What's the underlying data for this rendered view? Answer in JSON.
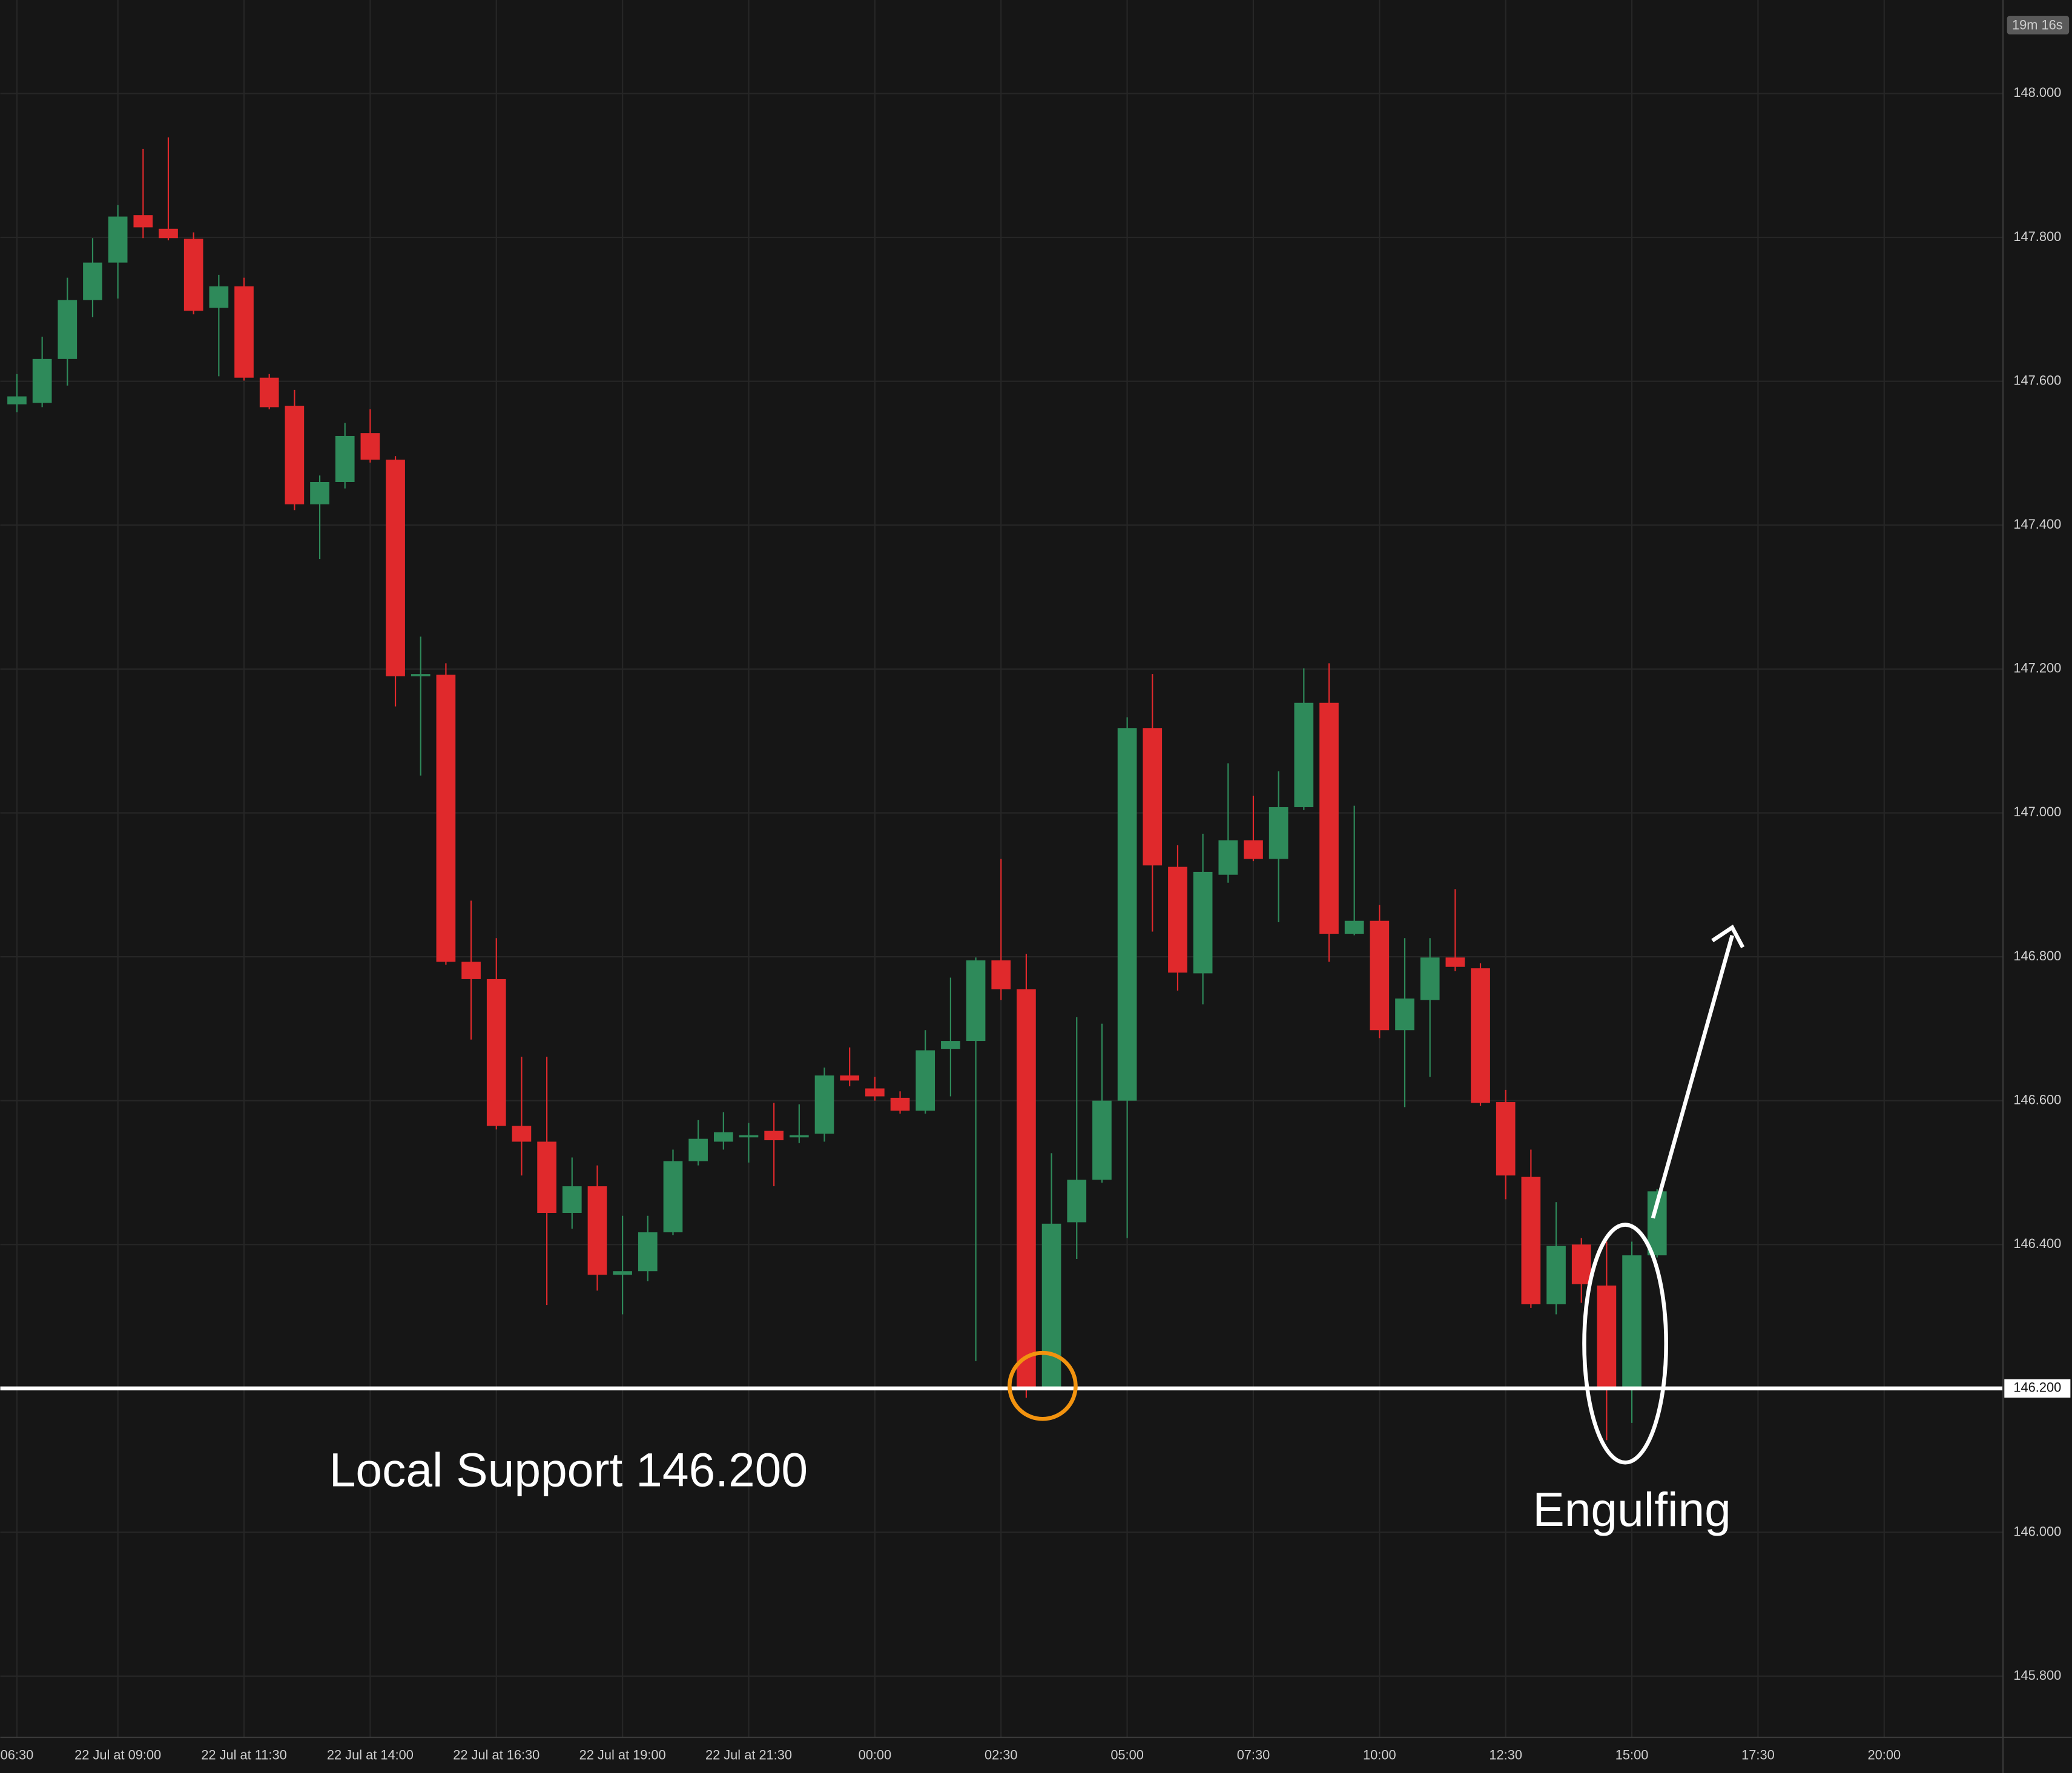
{
  "chart_data": {
    "type": "candlestick",
    "x": [
      -4,
      -3,
      -2,
      -1,
      0,
      1,
      2,
      3,
      4,
      5,
      6,
      7,
      8,
      9,
      10,
      11,
      12,
      13,
      14,
      15,
      16,
      17,
      18,
      19,
      20,
      21,
      22,
      23,
      24,
      25,
      26,
      27,
      28,
      29,
      30,
      31,
      32,
      33,
      34,
      35,
      36,
      37,
      38,
      39,
      40,
      41,
      42,
      43,
      44,
      45,
      46,
      47,
      48,
      49,
      50,
      51,
      52,
      53,
      54,
      55,
      56,
      57,
      58,
      59,
      60,
      61
    ],
    "open": [
      147.568,
      147.57,
      147.631,
      147.713,
      147.765,
      147.831,
      147.812,
      147.798,
      147.702,
      147.732,
      147.605,
      147.566,
      147.429,
      147.46,
      147.528,
      147.491,
      147.19,
      147.192,
      146.793,
      146.769,
      146.565,
      146.543,
      146.444,
      146.481,
      146.358,
      146.363,
      146.417,
      146.516,
      146.543,
      146.549,
      146.558,
      146.549,
      146.554,
      146.635,
      146.617,
      146.604,
      146.586,
      146.672,
      146.683,
      146.795,
      146.755,
      146.202,
      146.431,
      146.49,
      146.6,
      147.118,
      146.925,
      146.777,
      146.914,
      146.962,
      146.936,
      147.008,
      147.153,
      146.832,
      146.85,
      146.698,
      146.74,
      146.799,
      146.784,
      146.598,
      146.494,
      146.317,
      146.4,
      146.343,
      146.202,
      146.385
    ],
    "high": [
      147.61,
      147.662,
      147.744,
      147.799,
      147.845,
      147.923,
      147.939,
      147.807,
      147.748,
      147.744,
      147.61,
      147.588,
      147.469,
      147.542,
      147.561,
      147.496,
      147.245,
      147.208,
      146.878,
      146.826,
      146.661,
      146.661,
      146.521,
      146.51,
      146.44,
      146.44,
      146.532,
      146.573,
      146.584,
      146.569,
      146.597,
      146.595,
      146.646,
      146.674,
      146.633,
      146.613,
      146.698,
      146.771,
      146.799,
      146.936,
      146.804,
      146.527,
      146.716,
      146.707,
      147.133,
      147.193,
      146.955,
      146.971,
      147.069,
      147.024,
      147.058,
      147.201,
      147.208,
      147.01,
      146.872,
      146.826,
      146.826,
      146.894,
      146.791,
      146.615,
      146.532,
      146.459,
      146.409,
      146.404,
      146.404,
      146.477
    ],
    "low": [
      147.557,
      147.564,
      147.594,
      147.689,
      147.715,
      147.799,
      147.796,
      147.693,
      147.607,
      147.601,
      147.561,
      147.421,
      147.353,
      147.451,
      147.487,
      147.148,
      147.052,
      146.789,
      146.685,
      146.56,
      146.496,
      146.316,
      146.422,
      146.336,
      146.303,
      146.349,
      146.413,
      146.51,
      146.532,
      146.514,
      146.481,
      146.541,
      146.543,
      146.62,
      146.6,
      146.582,
      146.582,
      146.606,
      146.238,
      146.74,
      146.187,
      146.198,
      146.38,
      146.486,
      146.409,
      146.835,
      146.753,
      146.734,
      146.903,
      146.933,
      146.848,
      147.004,
      146.793,
      146.83,
      146.687,
      146.591,
      146.633,
      146.78,
      146.593,
      146.463,
      146.312,
      146.303,
      146.319,
      146.128,
      146.152,
      146.382
    ],
    "close": [
      147.579,
      147.631,
      147.713,
      147.765,
      147.829,
      147.814,
      147.799,
      147.698,
      147.732,
      147.605,
      147.564,
      147.429,
      147.46,
      147.524,
      147.491,
      147.19,
      147.193,
      146.793,
      146.769,
      146.565,
      146.543,
      146.444,
      146.481,
      146.358,
      146.363,
      146.417,
      146.516,
      146.547,
      146.556,
      146.552,
      146.545,
      146.552,
      146.635,
      146.628,
      146.606,
      146.586,
      146.67,
      146.683,
      146.795,
      146.755,
      146.202,
      146.429,
      146.49,
      146.6,
      147.118,
      146.927,
      146.778,
      146.918,
      146.962,
      146.936,
      147.008,
      147.153,
      146.832,
      146.85,
      146.698,
      146.742,
      146.799,
      146.786,
      146.597,
      146.496,
      146.317,
      146.398,
      146.345,
      146.202,
      146.385,
      146.474
    ],
    "up_color": "#2e8a5a",
    "down_color": "#e0292c",
    "xlim": [
      -4.66,
      74.71
    ],
    "ylim": [
      145.715,
      148.13
    ],
    "xticks": [
      {
        "value": -4,
        "label": "06:30"
      },
      {
        "value": 0,
        "label": "22 Jul at 09:00"
      },
      {
        "value": 5,
        "label": "22 Jul at 11:30"
      },
      {
        "value": 10,
        "label": "22 Jul at 14:00"
      },
      {
        "value": 15,
        "label": "22 Jul at 16:30"
      },
      {
        "value": 20,
        "label": "22 Jul at 19:00"
      },
      {
        "value": 25,
        "label": "22 Jul at 21:30"
      },
      {
        "value": 30,
        "label": "00:00"
      },
      {
        "value": 35,
        "label": "02:30"
      },
      {
        "value": 40,
        "label": "05:00"
      },
      {
        "value": 45,
        "label": "07:30"
      },
      {
        "value": 50,
        "label": "10:00"
      },
      {
        "value": 55,
        "label": "12:30"
      },
      {
        "value": 60,
        "label": "15:00"
      },
      {
        "value": 65,
        "label": "17:30"
      },
      {
        "value": 70,
        "label": "20:00"
      }
    ],
    "yticks": [
      {
        "value": 145.8,
        "label": "145.800"
      },
      {
        "value": 146.0,
        "label": "146.000"
      },
      {
        "value": 146.4,
        "label": "146.400"
      },
      {
        "value": 146.6,
        "label": "146.600"
      },
      {
        "value": 146.8,
        "label": "146.800"
      },
      {
        "value": 147.0,
        "label": "147.000"
      },
      {
        "value": 147.2,
        "label": "147.200"
      },
      {
        "value": 147.4,
        "label": "147.400"
      },
      {
        "value": 147.6,
        "label": "147.600"
      },
      {
        "value": 147.8,
        "label": "147.800"
      },
      {
        "value": 148.0,
        "label": "148.000"
      }
    ],
    "hline": {
      "value": 146.2,
      "label": "146.200"
    },
    "timer": "19m 16s",
    "annotations": [
      "Local Support 146.200",
      "Engulfing"
    ],
    "grid": true
  }
}
